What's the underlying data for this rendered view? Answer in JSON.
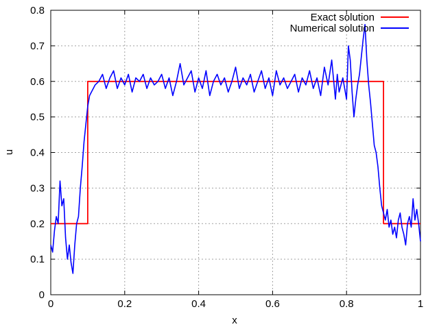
{
  "chart_data": {
    "type": "line",
    "title": "",
    "xlabel": "x",
    "ylabel": "u",
    "xlim": [
      0,
      1
    ],
    "ylim": [
      0,
      0.8
    ],
    "x_ticks": [
      "0",
      "0.2",
      "0.4",
      "0.6",
      "0.8",
      "1"
    ],
    "y_ticks": [
      "0",
      "0.1",
      "0.2",
      "0.3",
      "0.4",
      "0.5",
      "0.6",
      "0.7",
      "0.8"
    ],
    "grid": true,
    "legend_position": "top-right",
    "series": [
      {
        "name": "Exact solution",
        "color": "#ff0000",
        "points": [
          [
            0,
            0.2
          ],
          [
            0.1,
            0.2
          ],
          [
            0.1,
            0.6
          ],
          [
            0.9,
            0.6
          ],
          [
            0.9,
            0.2
          ],
          [
            1.0,
            0.2
          ]
        ]
      },
      {
        "name": "Numerical solution",
        "color": "#0000ff",
        "points": [
          [
            0.0,
            0.14
          ],
          [
            0.005,
            0.12
          ],
          [
            0.01,
            0.18
          ],
          [
            0.015,
            0.22
          ],
          [
            0.02,
            0.2
          ],
          [
            0.025,
            0.32
          ],
          [
            0.03,
            0.25
          ],
          [
            0.035,
            0.27
          ],
          [
            0.04,
            0.16
          ],
          [
            0.045,
            0.1
          ],
          [
            0.05,
            0.14
          ],
          [
            0.055,
            0.09
          ],
          [
            0.06,
            0.06
          ],
          [
            0.065,
            0.14
          ],
          [
            0.07,
            0.2
          ],
          [
            0.075,
            0.22
          ],
          [
            0.08,
            0.3
          ],
          [
            0.085,
            0.36
          ],
          [
            0.09,
            0.43
          ],
          [
            0.095,
            0.48
          ],
          [
            0.1,
            0.53
          ],
          [
            0.105,
            0.56
          ],
          [
            0.11,
            0.57
          ],
          [
            0.12,
            0.59
          ],
          [
            0.13,
            0.6
          ],
          [
            0.14,
            0.62
          ],
          [
            0.15,
            0.58
          ],
          [
            0.16,
            0.61
          ],
          [
            0.17,
            0.63
          ],
          [
            0.18,
            0.58
          ],
          [
            0.19,
            0.61
          ],
          [
            0.2,
            0.59
          ],
          [
            0.21,
            0.62
          ],
          [
            0.22,
            0.57
          ],
          [
            0.23,
            0.61
          ],
          [
            0.24,
            0.6
          ],
          [
            0.25,
            0.62
          ],
          [
            0.26,
            0.58
          ],
          [
            0.27,
            0.61
          ],
          [
            0.28,
            0.59
          ],
          [
            0.29,
            0.6
          ],
          [
            0.3,
            0.62
          ],
          [
            0.31,
            0.58
          ],
          [
            0.32,
            0.61
          ],
          [
            0.33,
            0.56
          ],
          [
            0.34,
            0.6
          ],
          [
            0.35,
            0.65
          ],
          [
            0.36,
            0.59
          ],
          [
            0.37,
            0.61
          ],
          [
            0.38,
            0.63
          ],
          [
            0.39,
            0.57
          ],
          [
            0.4,
            0.61
          ],
          [
            0.41,
            0.58
          ],
          [
            0.42,
            0.63
          ],
          [
            0.43,
            0.56
          ],
          [
            0.44,
            0.6
          ],
          [
            0.45,
            0.62
          ],
          [
            0.46,
            0.59
          ],
          [
            0.47,
            0.61
          ],
          [
            0.48,
            0.57
          ],
          [
            0.49,
            0.6
          ],
          [
            0.5,
            0.64
          ],
          [
            0.51,
            0.58
          ],
          [
            0.52,
            0.61
          ],
          [
            0.53,
            0.59
          ],
          [
            0.54,
            0.62
          ],
          [
            0.55,
            0.57
          ],
          [
            0.56,
            0.6
          ],
          [
            0.57,
            0.63
          ],
          [
            0.58,
            0.58
          ],
          [
            0.59,
            0.61
          ],
          [
            0.6,
            0.56
          ],
          [
            0.61,
            0.63
          ],
          [
            0.62,
            0.59
          ],
          [
            0.63,
            0.61
          ],
          [
            0.64,
            0.58
          ],
          [
            0.65,
            0.6
          ],
          [
            0.66,
            0.62
          ],
          [
            0.67,
            0.57
          ],
          [
            0.68,
            0.61
          ],
          [
            0.69,
            0.59
          ],
          [
            0.7,
            0.63
          ],
          [
            0.71,
            0.58
          ],
          [
            0.72,
            0.61
          ],
          [
            0.73,
            0.56
          ],
          [
            0.74,
            0.64
          ],
          [
            0.75,
            0.59
          ],
          [
            0.76,
            0.66
          ],
          [
            0.77,
            0.55
          ],
          [
            0.775,
            0.62
          ],
          [
            0.78,
            0.57
          ],
          [
            0.79,
            0.61
          ],
          [
            0.8,
            0.55
          ],
          [
            0.805,
            0.7
          ],
          [
            0.81,
            0.66
          ],
          [
            0.815,
            0.57
          ],
          [
            0.82,
            0.5
          ],
          [
            0.825,
            0.55
          ],
          [
            0.83,
            0.59
          ],
          [
            0.835,
            0.62
          ],
          [
            0.84,
            0.67
          ],
          [
            0.845,
            0.72
          ],
          [
            0.85,
            0.76
          ],
          [
            0.855,
            0.66
          ],
          [
            0.86,
            0.59
          ],
          [
            0.865,
            0.54
          ],
          [
            0.87,
            0.48
          ],
          [
            0.875,
            0.42
          ],
          [
            0.88,
            0.4
          ],
          [
            0.885,
            0.36
          ],
          [
            0.89,
            0.3
          ],
          [
            0.895,
            0.25
          ],
          [
            0.9,
            0.23
          ],
          [
            0.905,
            0.21
          ],
          [
            0.91,
            0.24
          ],
          [
            0.915,
            0.19
          ],
          [
            0.92,
            0.21
          ],
          [
            0.925,
            0.17
          ],
          [
            0.93,
            0.19
          ],
          [
            0.935,
            0.16
          ],
          [
            0.94,
            0.21
          ],
          [
            0.945,
            0.23
          ],
          [
            0.95,
            0.19
          ],
          [
            0.955,
            0.17
          ],
          [
            0.96,
            0.14
          ],
          [
            0.965,
            0.2
          ],
          [
            0.97,
            0.22
          ],
          [
            0.975,
            0.19
          ],
          [
            0.98,
            0.27
          ],
          [
            0.985,
            0.21
          ],
          [
            0.99,
            0.24
          ],
          [
            0.995,
            0.2
          ],
          [
            1.0,
            0.15
          ]
        ]
      }
    ]
  }
}
